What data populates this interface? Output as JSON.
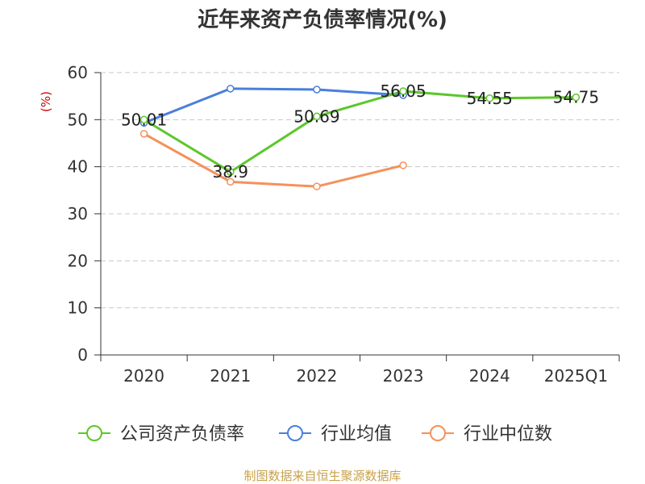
{
  "chart_data": {
    "type": "line",
    "title": "近年来资产负债率情况(%)",
    "ylabel": "(%)",
    "xlabel": "",
    "categories": [
      "2020",
      "2021",
      "2022",
      "2023",
      "2024",
      "2025Q1"
    ],
    "ylim": [
      0,
      60
    ],
    "yticks": [
      0,
      10,
      20,
      30,
      40,
      50,
      60
    ],
    "grid": true,
    "legend_position": "bottom",
    "series": [
      {
        "name": "公司资产负债率",
        "color": "#5cc72a",
        "values": [
          50.01,
          38.9,
          50.69,
          56.05,
          54.55,
          54.75
        ],
        "data_labels": [
          "50.01",
          "38.9",
          "50.69",
          "56.05",
          "54.55",
          "54.75"
        ]
      },
      {
        "name": "行业均值",
        "color": "#4a7fdb",
        "values": [
          49.3,
          56.6,
          56.4,
          55.2,
          null,
          null
        ]
      },
      {
        "name": "行业中位数",
        "color": "#f5915a",
        "values": [
          47.0,
          36.8,
          35.8,
          40.3,
          null,
          null
        ]
      }
    ]
  },
  "source": "制图数据来自恒生聚源数据库"
}
